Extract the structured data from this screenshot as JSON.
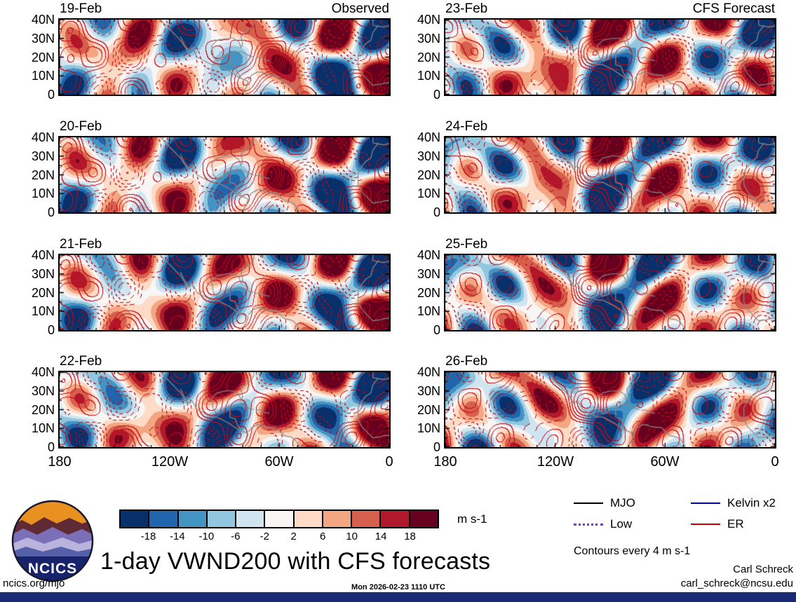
{
  "title": "1-day VWND200 with CFS forecasts",
  "columns": {
    "left": {
      "header": "Observed",
      "dates": [
        "19-Feb",
        "20-Feb",
        "21-Feb",
        "22-Feb"
      ]
    },
    "right": {
      "header": "CFS Forecast",
      "dates": [
        "23-Feb",
        "24-Feb",
        "25-Feb",
        "26-Feb"
      ]
    }
  },
  "axes": {
    "y_ticks": [
      "40N",
      "30N",
      "20N",
      "10N",
      "0"
    ],
    "x_ticks": [
      "180",
      "120W",
      "60W",
      "0"
    ]
  },
  "colorbar": {
    "levels": [
      "-18",
      "-14",
      "-10",
      "-6",
      "-2",
      "2",
      "6",
      "10",
      "14",
      "18"
    ],
    "colors": [
      "#08306b",
      "#2166ac",
      "#4393c3",
      "#92c5de",
      "#d1e5f0",
      "#f7f6f4",
      "#fddbc7",
      "#f4a582",
      "#d6604d",
      "#b2182b",
      "#67001f"
    ],
    "units": "m s-1"
  },
  "legend": {
    "items": [
      {
        "label": "MJO",
        "color": "#000000",
        "style": "solid"
      },
      {
        "label": "Low",
        "color": "#8a2be2",
        "style": "dotted"
      },
      {
        "label": "Kelvin x2",
        "color": "#0000cd",
        "style": "solid"
      },
      {
        "label": "ER",
        "color": "#cc0000",
        "style": "solid"
      }
    ],
    "note": "Contours every 4 m s-1"
  },
  "logo": {
    "text": "NCICS"
  },
  "footer": {
    "left": "ncics.org/mjo",
    "center": "Mon 2026-02-23 1110 UTC",
    "right_name": "Carl Schreck",
    "right_email": "carl_schreck@ncsu.edu"
  },
  "chart_data": {
    "type": "heatmap",
    "variable": "VWND200 (200-hPa meridional wind anomaly)",
    "units": "m s-1",
    "fill_levels": [
      -18,
      -14,
      -10,
      -6,
      -2,
      2,
      6,
      10,
      14,
      18
    ],
    "fill_colors": [
      "#08306b",
      "#2166ac",
      "#4393c3",
      "#92c5de",
      "#d1e5f0",
      "#f7f6f4",
      "#fddbc7",
      "#f4a582",
      "#d6604d",
      "#b2182b",
      "#67001f"
    ],
    "contour_interval_note": "Contours every 4 m s-1",
    "x_axis": {
      "label": "longitude",
      "ticks": [
        "180",
        "120W",
        "60W",
        "0"
      ],
      "domain": "180 west to 0"
    },
    "y_axis": {
      "label": "latitude",
      "ticks": [
        "40N",
        "30N",
        "20N",
        "10N",
        "0"
      ],
      "domain": "0 to 40N"
    },
    "panels": [
      {
        "date": "19-Feb",
        "kind": "Observed"
      },
      {
        "date": "20-Feb",
        "kind": "Observed"
      },
      {
        "date": "21-Feb",
        "kind": "Observed"
      },
      {
        "date": "22-Feb",
        "kind": "Observed"
      },
      {
        "date": "23-Feb",
        "kind": "CFS Forecast"
      },
      {
        "date": "24-Feb",
        "kind": "CFS Forecast"
      },
      {
        "date": "25-Feb",
        "kind": "CFS Forecast"
      },
      {
        "date": "26-Feb",
        "kind": "CFS Forecast"
      }
    ],
    "overlay_contours": [
      "MJO",
      "Low",
      "Kelvin x2",
      "ER"
    ],
    "qualitative_pattern": "Large alternating zonal bands of northerly (blue, below -18 m s-1) and southerly (red, above +18 m s-1) anomalies span the Pacific, North America and Atlantic sectors; red ER-filtered contours (solid positive, dashed negative) evolve and shift slowly westward from 19-Feb through 26-Feb."
  }
}
